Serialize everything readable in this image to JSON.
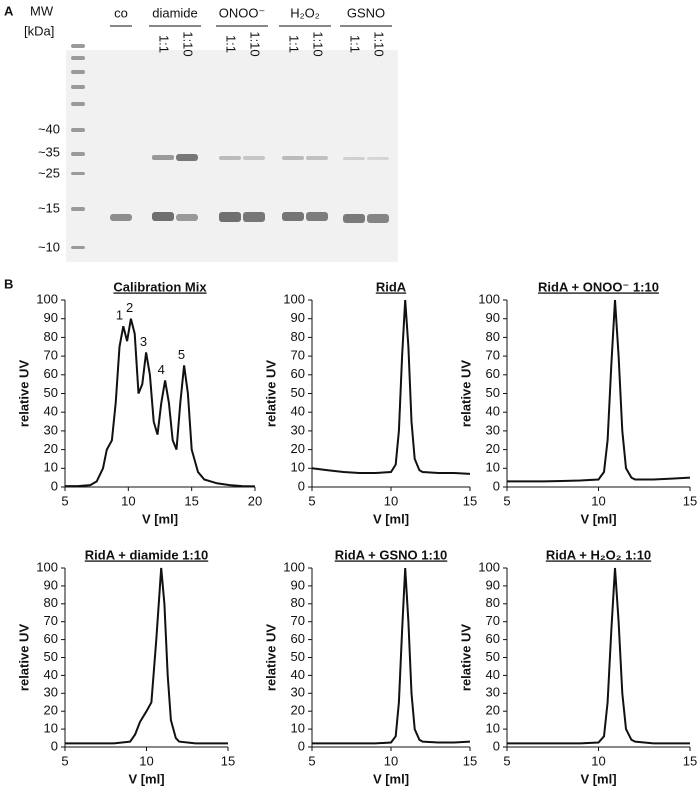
{
  "panels": [
    "A",
    "B"
  ],
  "gel": {
    "mw_label": "MW",
    "unit_label": "[kDa]",
    "markers": [
      "~40",
      "~35",
      "~25",
      "~15",
      "~10"
    ],
    "control": "co",
    "groups": [
      {
        "name": "diamide",
        "lanes": [
          "1:1",
          "1:10"
        ]
      },
      {
        "name": "ONOO⁻",
        "lanes": [
          "1:1",
          "1:10"
        ]
      },
      {
        "name": "H₂O₂",
        "lanes": [
          "1:1",
          "1:10"
        ]
      },
      {
        "name": "GSNO",
        "lanes": [
          "1:1",
          "1:10"
        ]
      }
    ]
  },
  "chart_data": [
    {
      "type": "line",
      "title": "Calibration Mix",
      "xlabel": "V [ml]",
      "ylabel": "relative UV",
      "color": "#111111",
      "annotations": [
        "1",
        "2",
        "3",
        "4",
        "5"
      ],
      "xlim": [
        5,
        20
      ],
      "ylim": [
        0,
        100
      ],
      "xticks": [
        5,
        10,
        15,
        20
      ],
      "yticks": [
        0,
        10,
        20,
        30,
        40,
        50,
        60,
        70,
        80,
        90,
        100
      ],
      "x": [
        5,
        6,
        7,
        7.5,
        8,
        8.3,
        8.7,
        9,
        9.3,
        9.6,
        9.9,
        10.2,
        10.5,
        10.8,
        11.1,
        11.4,
        11.7,
        12,
        12.3,
        12.6,
        12.9,
        13.2,
        13.5,
        13.8,
        14.1,
        14.4,
        14.7,
        15,
        15.5,
        16,
        17,
        18,
        19,
        20
      ],
      "values": [
        0.5,
        0.5,
        1,
        3,
        10,
        20,
        25,
        45,
        75,
        86,
        78,
        90,
        82,
        50,
        55,
        72,
        60,
        35,
        28,
        45,
        57,
        45,
        25,
        20,
        45,
        65,
        50,
        20,
        8,
        4,
        2,
        1,
        0.5,
        0.3
      ]
    },
    {
      "type": "line",
      "title": "RidA",
      "xlabel": "V [ml]",
      "ylabel": "relative UV",
      "color": "#111111",
      "xlim": [
        5,
        15
      ],
      "ylim": [
        0,
        100
      ],
      "xticks": [
        5,
        10,
        15
      ],
      "yticks": [
        0,
        10,
        20,
        30,
        40,
        50,
        60,
        70,
        80,
        90,
        100
      ],
      "x": [
        5,
        6,
        7,
        8,
        9,
        10,
        10.3,
        10.5,
        10.7,
        10.9,
        11.1,
        11.3,
        11.5,
        11.8,
        12,
        13,
        14,
        15
      ],
      "values": [
        10,
        9,
        8,
        7.5,
        7.5,
        8,
        12,
        30,
        70,
        100,
        75,
        35,
        15,
        9,
        8,
        7.5,
        7.5,
        7
      ]
    },
    {
      "type": "line",
      "title": "RidA + ONOO⁻ 1:10",
      "xlabel": "V [ml]",
      "ylabel": "relative UV",
      "color": "#111111",
      "xlim": [
        5,
        15
      ],
      "ylim": [
        0,
        100
      ],
      "xticks": [
        5,
        10,
        15
      ],
      "yticks": [
        0,
        10,
        20,
        30,
        40,
        50,
        60,
        70,
        80,
        90,
        100
      ],
      "x": [
        5,
        6,
        7,
        8,
        9,
        10,
        10.3,
        10.5,
        10.7,
        10.9,
        11.1,
        11.3,
        11.5,
        11.8,
        12,
        13,
        14,
        15
      ],
      "values": [
        3,
        3,
        3,
        3.2,
        3.5,
        4,
        8,
        25,
        65,
        100,
        70,
        30,
        10,
        5,
        4,
        4,
        4.5,
        5
      ]
    },
    {
      "type": "line",
      "title": "RidA + diamide  1:10",
      "xlabel": "V [ml]",
      "ylabel": "relative UV",
      "color": "#111111",
      "xlim": [
        5,
        15
      ],
      "ylim": [
        0,
        100
      ],
      "xticks": [
        5,
        10,
        15
      ],
      "yticks": [
        0,
        10,
        20,
        30,
        40,
        50,
        60,
        70,
        80,
        90,
        100
      ],
      "x": [
        5,
        7,
        8,
        9,
        9.3,
        9.6,
        10,
        10.3,
        10.6,
        10.9,
        11.1,
        11.3,
        11.5,
        11.8,
        12,
        13,
        15
      ],
      "values": [
        2,
        2,
        2,
        3,
        7,
        14,
        20,
        25,
        60,
        100,
        80,
        40,
        15,
        5,
        3,
        2,
        2
      ]
    },
    {
      "type": "line",
      "title": "RidA + GSNO  1:10",
      "xlabel": "V [ml]",
      "ylabel": "relative UV",
      "color": "#111111",
      "xlim": [
        5,
        15
      ],
      "ylim": [
        0,
        100
      ],
      "xticks": [
        5,
        10,
        15
      ],
      "yticks": [
        0,
        10,
        20,
        30,
        40,
        50,
        60,
        70,
        80,
        90,
        100
      ],
      "x": [
        5,
        7,
        9,
        10,
        10.3,
        10.5,
        10.7,
        10.9,
        11.1,
        11.3,
        11.5,
        11.8,
        12,
        13,
        14,
        15
      ],
      "values": [
        2,
        2,
        2,
        2.5,
        6,
        25,
        65,
        100,
        70,
        30,
        10,
        4,
        3,
        2.5,
        2.5,
        3
      ]
    },
    {
      "type": "line",
      "title": "RidA + H₂O₂  1:10",
      "xlabel": "V [ml]",
      "ylabel": "relative UV",
      "color": "#111111",
      "xlim": [
        5,
        15
      ],
      "ylim": [
        0,
        100
      ],
      "xticks": [
        5,
        10,
        15
      ],
      "yticks": [
        0,
        10,
        20,
        30,
        40,
        50,
        60,
        70,
        80,
        90,
        100
      ],
      "x": [
        5,
        7,
        9,
        10,
        10.3,
        10.5,
        10.7,
        10.9,
        11.1,
        11.3,
        11.5,
        11.8,
        12,
        13,
        14,
        15
      ],
      "values": [
        2,
        2,
        2,
        2.5,
        6,
        25,
        65,
        100,
        70,
        30,
        10,
        4,
        3,
        2,
        2,
        2
      ]
    }
  ]
}
